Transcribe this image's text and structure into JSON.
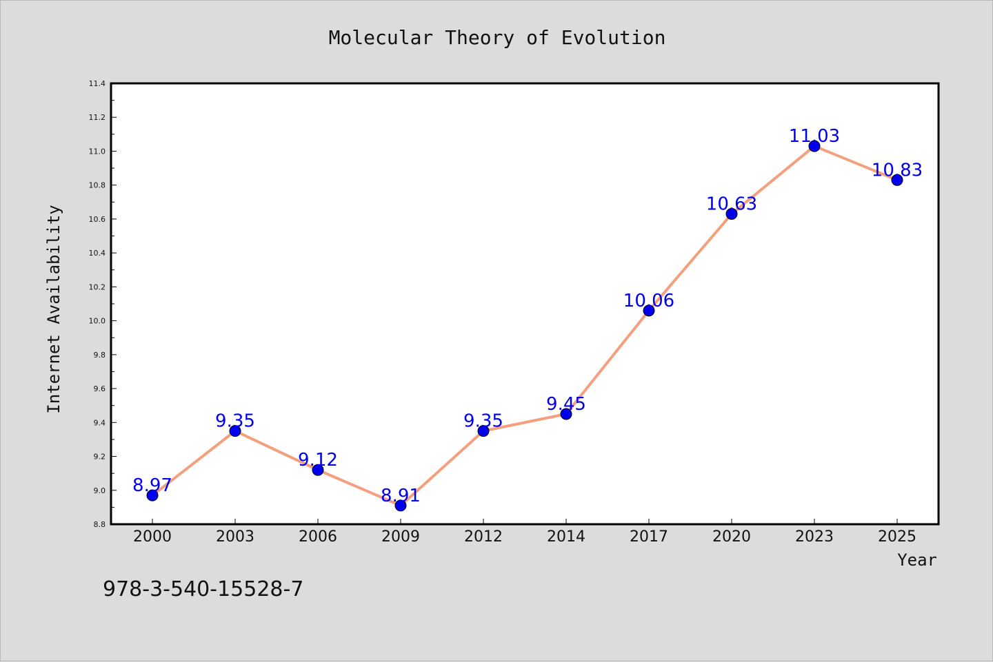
{
  "chart_data": {
    "type": "line",
    "title": "Molecular Theory of Evolution",
    "xlabel": "Year",
    "ylabel": "Internet Availability",
    "categories": [
      "2000",
      "2003",
      "2006",
      "2009",
      "2012",
      "2014",
      "2017",
      "2020",
      "2023",
      "2025"
    ],
    "series": [
      {
        "values": [
          8.97,
          9.35,
          9.12,
          8.91,
          9.35,
          9.45,
          10.06,
          10.63,
          11.03,
          10.83
        ],
        "labels": [
          "8.97",
          "9.35",
          "9.12",
          "8.91",
          "9.35",
          "9.45",
          "10.06",
          "10.63",
          "11.03",
          "10.83"
        ],
        "line_color": "#f4a07e",
        "marker_color": "#0000ee",
        "label_color": "#0000ee"
      }
    ],
    "ylim": [
      8.8,
      11.4
    ],
    "y_ticks": [
      "8.8",
      "9.0",
      "9.2",
      "9.4",
      "9.6",
      "9.8",
      "10.0",
      "10.2",
      "10.4",
      "10.6",
      "10.8",
      "11.0",
      "11.2",
      "11.4"
    ],
    "grid": false,
    "legend": "none"
  },
  "footer_text": "978-3-540-15528-7",
  "colors": {
    "background": "#dcdcdc",
    "plot_area": "#ffffff",
    "axis": "#000000"
  }
}
